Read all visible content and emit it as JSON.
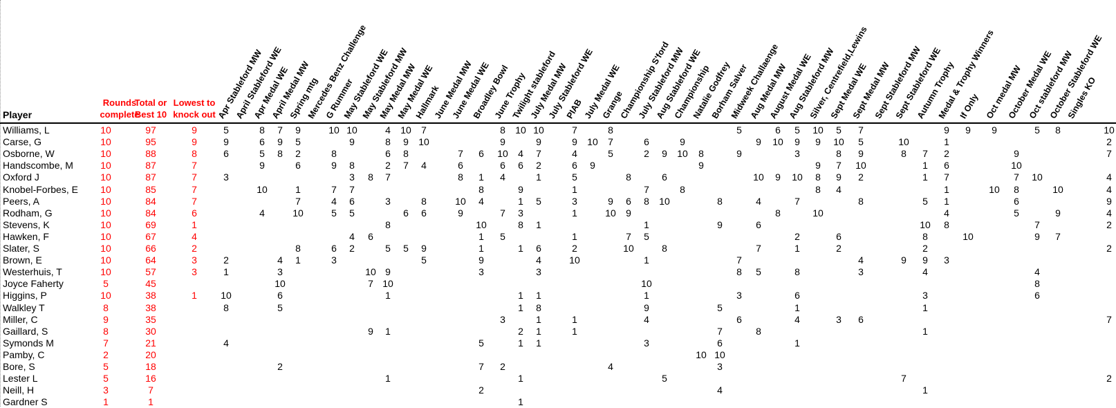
{
  "headers": {
    "player": "Player",
    "rounds_line1": "Rounds",
    "rounds_line2": "complete",
    "total_line1": "Total or",
    "total_line2": "Best 10",
    "lowest_line1": "Lowest to",
    "lowest_line2": "knock out"
  },
  "columns": [
    "Apr Stableford MW",
    "April Stableford WE",
    "Apr Medal WE",
    "April Medal MW",
    "Spring mtg",
    "Mercedes Benz Challenge",
    "G Rummer",
    "May Stableford WE",
    "May Stableford MW",
    "May Medal MW",
    "May Medal WE",
    "Hallmark",
    "June Medal MW",
    "June Medal WE",
    "Broadley Bowl",
    "June Trophy",
    "Twilight stableford",
    "July Medal MW",
    "July Stableford  WE",
    "PIAB",
    "July Medal WE",
    "Grange",
    "Championship S'ford",
    "July Stableford MW",
    "Aug Stableford WE",
    "Championship",
    "Natalie Godfrey",
    "Borham  Salver",
    "Midweek Challaenge",
    "Aug Medal MW",
    "August Medal WE",
    "Aug Stableford MW",
    "Silver, Centrefield,Lewins",
    "Sept Medal WE",
    "Sept Medal MW",
    "Sept Stableford MW",
    "Sept Stableford WE",
    "Autumn Trophy",
    "Medal & Trophy Winners",
    "If Only",
    "Oct medal MW",
    "October Medal WE",
    "Oct stableford MW",
    "October Stableford  WE",
    "Singles KO"
  ],
  "colors": {
    "accent_red": "#ff0000"
  },
  "players": [
    {
      "name": "Williams, L",
      "rounds": "10",
      "total": "97",
      "lowest": "9",
      "scores": {
        "0": "5",
        "2": "8",
        "3": "7",
        "4": "9",
        "6": "10",
        "7": "10",
        "9": "4",
        "10": "10",
        "11": "7",
        "15": "8",
        "16": "10",
        "17": "10",
        "19": "7",
        "21": "8",
        "28": "5",
        "30": "6",
        "31": "5",
        "32": "10",
        "33": "5",
        "34": "7",
        "38": "9",
        "39": "9",
        "40": "9",
        "42": "5",
        "43": "8",
        "44": "10"
      }
    },
    {
      "name": "Carse, G",
      "rounds": "10",
      "total": "95",
      "lowest": "9",
      "scores": {
        "0": "9",
        "2": "6",
        "3": "9",
        "4": "5",
        "7": "9",
        "9": "8",
        "10": "9",
        "11": "10",
        "15": "9",
        "17": "9",
        "19": "9",
        "20": "10",
        "21": "7",
        "23": "6",
        "25": "9",
        "29": "9",
        "30": "10",
        "31": "9",
        "32": "9",
        "33": "10",
        "34": "5",
        "36": "10",
        "38": "1",
        "44": "2"
      }
    },
    {
      "name": "Osborne, W",
      "rounds": "10",
      "total": "88",
      "lowest": "8",
      "scores": {
        "0": "6",
        "2": "5",
        "3": "8",
        "4": "2",
        "6": "8",
        "9": "6",
        "10": "8",
        "13": "7",
        "14": "6",
        "15": "10",
        "16": "4",
        "17": "7",
        "19": "4",
        "21": "5",
        "23": "2",
        "24": "9",
        "25": "10",
        "26": "8",
        "28": "9",
        "31": "3",
        "33": "8",
        "34": "9",
        "36": "8",
        "37": "7",
        "38": "2",
        "41": "9",
        "44": "7"
      }
    },
    {
      "name": "Handscombe, M",
      "rounds": "10",
      "total": "87",
      "lowest": "7",
      "scores": {
        "2": "9",
        "4": "6",
        "6": "9",
        "7": "8",
        "9": "2",
        "10": "7",
        "11": "4",
        "13": "6",
        "15": "6",
        "16": "6",
        "17": "2",
        "19": "6",
        "20": "9",
        "26": "9",
        "32": "9",
        "33": "7",
        "34": "10",
        "37": "1",
        "38": "6",
        "41": "10"
      }
    },
    {
      "name": "Oxford J",
      "rounds": "10",
      "total": "87",
      "lowest": "7",
      "scores": {
        "0": "3",
        "7": "3",
        "8": "8",
        "9": "7",
        "13": "8",
        "14": "1",
        "15": "4",
        "17": "1",
        "19": "5",
        "22": "8",
        "24": "6",
        "29": "10",
        "30": "9",
        "31": "10",
        "32": "8",
        "33": "9",
        "34": "2",
        "37": "1",
        "38": "7",
        "41": "7",
        "42": "10",
        "44": "4"
      }
    },
    {
      "name": "Knobel-Forbes, E",
      "rounds": "10",
      "total": "85",
      "lowest": "7",
      "scores": {
        "2": "10",
        "4": "1",
        "6": "7",
        "7": "7",
        "14": "8",
        "16": "9",
        "19": "1",
        "23": "7",
        "25": "8",
        "32": "8",
        "33": "4",
        "38": "1",
        "40": "10",
        "41": "8",
        "43": "10",
        "44": "4"
      }
    },
    {
      "name": "Peers, A",
      "rounds": "10",
      "total": "84",
      "lowest": "7",
      "scores": {
        "4": "7",
        "6": "4",
        "7": "6",
        "9": "3",
        "11": "8",
        "13": "10",
        "14": "4",
        "16": "1",
        "17": "5",
        "19": "3",
        "21": "9",
        "22": "6",
        "23": "8",
        "24": "10",
        "27": "8",
        "29": "4",
        "31": "7",
        "34": "8",
        "37": "5",
        "38": "1",
        "41": "6",
        "44": "9"
      }
    },
    {
      "name": "Rodham, G",
      "rounds": "10",
      "total": "84",
      "lowest": "6",
      "scores": {
        "2": "4",
        "4": "10",
        "6": "5",
        "7": "5",
        "10": "6",
        "11": "6",
        "13": "9",
        "15": "7",
        "16": "3",
        "19": "1",
        "21": "10",
        "22": "9",
        "30": "8",
        "32": "10",
        "38": "4",
        "41": "5",
        "43": "9",
        "44": "4"
      }
    },
    {
      "name": "Stevens, K",
      "rounds": "10",
      "total": "69",
      "lowest": "1",
      "scores": {
        "9": "8",
        "14": "10",
        "16": "8",
        "17": "1",
        "23": "1",
        "27": "9",
        "29": "6",
        "37": "10",
        "38": "8",
        "42": "7",
        "44": "2"
      }
    },
    {
      "name": "Hawken, F",
      "rounds": "10",
      "total": "67",
      "lowest": "4",
      "scores": {
        "7": "4",
        "8": "6",
        "14": "1",
        "15": "5",
        "19": "1",
        "22": "7",
        "23": "5",
        "31": "2",
        "33": "6",
        "37": "8",
        "39": "10",
        "42": "9",
        "43": "7"
      }
    },
    {
      "name": "Slater, S",
      "rounds": "10",
      "total": "66",
      "lowest": "2",
      "scores": {
        "4": "8",
        "6": "6",
        "7": "2",
        "9": "5",
        "10": "5",
        "11": "9",
        "14": "1",
        "16": "1",
        "17": "6",
        "19": "2",
        "22": "10",
        "24": "8",
        "29": "7",
        "31": "1",
        "33": "2",
        "37": "2",
        "44": "2"
      }
    },
    {
      "name": "Brown, E",
      "rounds": "10",
      "total": "64",
      "lowest": "3",
      "scores": {
        "0": "2",
        "3": "4",
        "4": "1",
        "6": "3",
        "11": "5",
        "14": "9",
        "17": "4",
        "19": "10",
        "23": "1",
        "28": "7",
        "34": "4",
        "36": "9",
        "37": "9",
        "38": "3"
      }
    },
    {
      "name": "Westerhuis, T",
      "rounds": "10",
      "total": "57",
      "lowest": "3",
      "scores": {
        "0": "1",
        "3": "3",
        "8": "10",
        "9": "9",
        "14": "3",
        "17": "3",
        "28": "8",
        "29": "5",
        "31": "8",
        "34": "3",
        "37": "4",
        "42": "4"
      }
    },
    {
      "name": "Joyce Faherty",
      "rounds": "5",
      "total": "45",
      "lowest": "",
      "scores": {
        "3": "10",
        "8": "7",
        "9": "10",
        "23": "10",
        "42": "8"
      }
    },
    {
      "name": "Higgins, P",
      "rounds": "10",
      "total": "38",
      "lowest": "1",
      "scores": {
        "0": "10",
        "3": "6",
        "9": "1",
        "16": "1",
        "17": "1",
        "23": "1",
        "28": "3",
        "31": "6",
        "37": "3",
        "42": "6"
      }
    },
    {
      "name": "Walkley T",
      "rounds": "8",
      "total": "38",
      "lowest": "",
      "scores": {
        "0": "8",
        "3": "5",
        "16": "1",
        "17": "8",
        "23": "9",
        "27": "5",
        "31": "1",
        "37": "1"
      }
    },
    {
      "name": "Miller, C",
      "rounds": "9",
      "total": "35",
      "lowest": "",
      "scores": {
        "15": "3",
        "17": "1",
        "19": "1",
        "23": "4",
        "28": "6",
        "31": "4",
        "33": "3",
        "34": "6",
        "44": "7"
      }
    },
    {
      "name": "Gaillard, S",
      "rounds": "8",
      "total": "30",
      "lowest": "",
      "scores": {
        "8": "9",
        "9": "1",
        "16": "2",
        "17": "1",
        "19": "1",
        "27": "7",
        "29": "8",
        "37": "1"
      }
    },
    {
      "name": "Symonds M",
      "rounds": "7",
      "total": "21",
      "lowest": "",
      "scores": {
        "0": "4",
        "14": "5",
        "16": "1",
        "17": "1",
        "23": "3",
        "27": "6",
        "31": "1"
      }
    },
    {
      "name": "Pamby, C",
      "rounds": "2",
      "total": "20",
      "lowest": "",
      "scores": {
        "26": "10",
        "27": "10"
      }
    },
    {
      "name": "Bore, S",
      "rounds": "5",
      "total": "18",
      "lowest": "",
      "scores": {
        "3": "2",
        "14": "7",
        "15": "2",
        "21": "4",
        "27": "3"
      }
    },
    {
      "name": "Lester L",
      "rounds": "5",
      "total": "16",
      "lowest": "",
      "scores": {
        "9": "1",
        "16": "1",
        "24": "5",
        "36": "7",
        "44": "2"
      }
    },
    {
      "name": "Neill, H",
      "rounds": "3",
      "total": "7",
      "lowest": "",
      "scores": {
        "14": "2",
        "27": "4",
        "37": "1"
      }
    },
    {
      "name": "Gardner S",
      "rounds": "1",
      "total": "1",
      "lowest": "",
      "scores": {
        "16": "1"
      }
    }
  ]
}
